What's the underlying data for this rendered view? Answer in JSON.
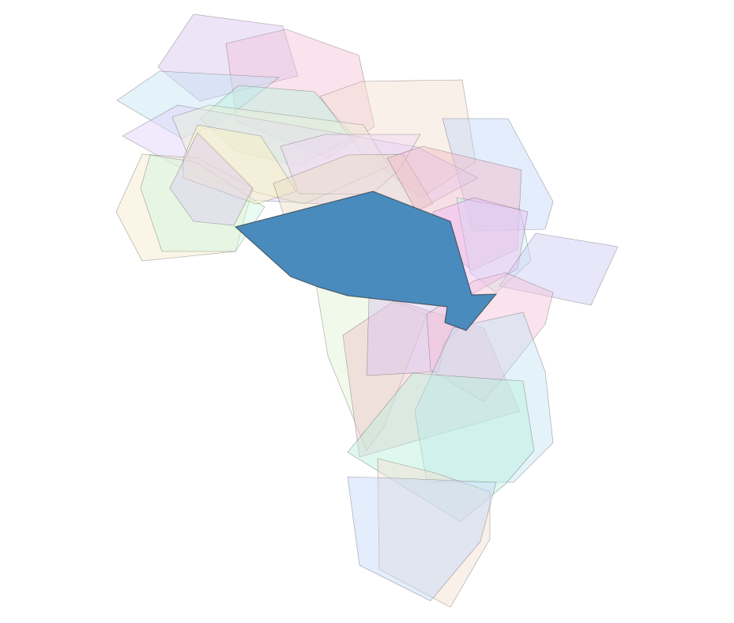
{
  "map": {
    "highlighted_region": {
      "color": "#4a8bbd"
    },
    "region_colors": [
      "#d8c4f0",
      "#f4c2d8",
      "#c4e2f4",
      "#b8f0dc",
      "#f4ddd0",
      "#c4d8f8",
      "#e0d0f8",
      "#e8f0d8",
      "#f4e8c8",
      "#d0f8e0",
      "#fcf4c0",
      "#dccaf4",
      "#f0d4f4",
      "#e8dcc4",
      "#f0b8c8",
      "#c8f0f4",
      "#eeb8f4",
      "#cccaf4",
      "#e0f4d0",
      "#f0c0cc"
    ]
  }
}
